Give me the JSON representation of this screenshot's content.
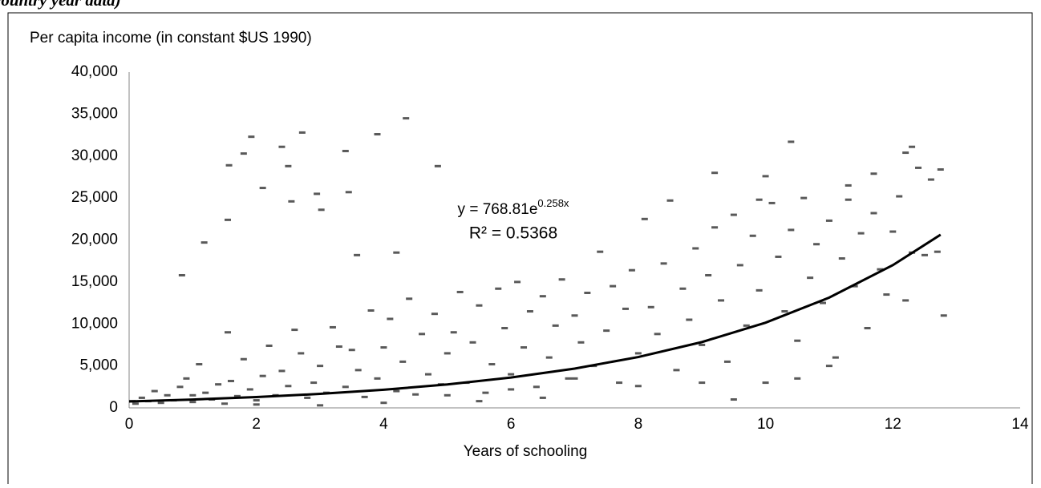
{
  "caption": "country year data)",
  "chart_data": {
    "type": "scatter",
    "ylabel": "Per capita income (in constant $US 1990)",
    "xlabel": "Years of schooling",
    "xlim": [
      0,
      14
    ],
    "xticks": [
      0,
      2,
      4,
      6,
      8,
      10,
      12,
      14
    ],
    "ylim": [
      0,
      40000
    ],
    "yticks": [
      0,
      {
        "value": 5000,
        "label": "5,000"
      },
      {
        "value": 10000,
        "label": "10,000"
      },
      {
        "value": 15000,
        "label": "15,000"
      },
      {
        "value": 20000,
        "label": "20,000"
      },
      {
        "value": 25000,
        "label": "25,000"
      },
      {
        "value": 30000,
        "label": "30,000"
      },
      {
        "value": 35000,
        "label": "35,000"
      },
      {
        "value": 40000,
        "label": "40,000"
      }
    ],
    "grid": false,
    "color": "#595959",
    "x": [
      0.83,
      1.18,
      1.55,
      1.57,
      1.8,
      1.92,
      2.1,
      2.4,
      2.5,
      2.55,
      2.72,
      2.95,
      3.02,
      3.4,
      3.45,
      3.58,
      3.9,
      4.2,
      4.35,
      4.85,
      1.55,
      9.2,
      10.4,
      12.2,
      12.3,
      12.75,
      12.8,
      10.0,
      9.9,
      11.3,
      11.7,
      12.4,
      0.1,
      0.2,
      0.3,
      0.4,
      0.5,
      0.6,
      0.7,
      0.8,
      0.9,
      1.0,
      1.1,
      1.2,
      1.3,
      1.4,
      1.5,
      1.6,
      1.7,
      1.8,
      1.9,
      2.0,
      2.1,
      2.2,
      2.3,
      2.4,
      2.5,
      2.6,
      2.7,
      2.8,
      2.9,
      3.0,
      3.1,
      3.2,
      3.3,
      3.4,
      3.5,
      3.6,
      3.7,
      3.8,
      3.9,
      4.0,
      4.1,
      4.2,
      4.3,
      4.4,
      4.5,
      4.6,
      4.7,
      4.8,
      4.9,
      5.0,
      5.1,
      5.2,
      5.3,
      5.4,
      5.5,
      5.6,
      5.7,
      5.8,
      5.9,
      6.0,
      6.1,
      6.2,
      6.3,
      6.4,
      6.5,
      6.6,
      6.7,
      6.8,
      6.9,
      7.0,
      7.1,
      7.2,
      7.3,
      7.4,
      7.5,
      7.6,
      7.7,
      7.8,
      7.9,
      8.0,
      8.1,
      8.2,
      8.3,
      8.4,
      8.5,
      8.6,
      8.7,
      8.8,
      8.9,
      9.0,
      9.1,
      9.2,
      9.3,
      9.4,
      9.5,
      9.6,
      9.7,
      9.8,
      9.9,
      10.0,
      10.1,
      10.2,
      10.3,
      10.4,
      10.5,
      10.6,
      10.7,
      10.8,
      10.9,
      11.0,
      11.1,
      11.2,
      11.3,
      11.4,
      11.5,
      11.6,
      11.7,
      11.8,
      11.9,
      12.0,
      12.1,
      12.2,
      12.3,
      12.5,
      12.6,
      12.7,
      5.0,
      6.0,
      7.0,
      8.0,
      9.0,
      9.5,
      10.5,
      11.0,
      2.0,
      3.0,
      4.0,
      5.5,
      6.5,
      1.0,
      0.05
    ],
    "values": [
      15800,
      19700,
      22400,
      28900,
      30300,
      32300,
      26200,
      31100,
      28800,
      24600,
      32800,
      25500,
      23600,
      30600,
      25700,
      18200,
      32600,
      18500,
      34500,
      28800,
      9000,
      28000,
      31700,
      30400,
      31100,
      28400,
      11000,
      27600,
      24800,
      26500,
      27900,
      28600,
      500,
      1200,
      800,
      2000,
      600,
      1500,
      900,
      2500,
      3500,
      700,
      5200,
      1800,
      1000,
      2800,
      500,
      3200,
      1400,
      5800,
      2200,
      900,
      3800,
      7400,
      1500,
      4400,
      2600,
      9300,
      6500,
      1200,
      3000,
      5000,
      1800,
      9600,
      7300,
      2500,
      6900,
      4500,
      1300,
      11600,
      3500,
      7200,
      10600,
      2000,
      5500,
      13000,
      1600,
      8800,
      4000,
      11200,
      2800,
      6500,
      9000,
      13800,
      3000,
      7800,
      12200,
      1800,
      5200,
      14200,
      9500,
      4000,
      15000,
      7200,
      11500,
      2500,
      13300,
      6000,
      9800,
      15300,
      3500,
      11000,
      7800,
      13700,
      5000,
      18600,
      9200,
      14500,
      3000,
      11800,
      16400,
      6500,
      22500,
      12000,
      8800,
      17200,
      24700,
      4500,
      14200,
      10500,
      19000,
      7500,
      15800,
      21500,
      12800,
      5500,
      23000,
      17000,
      9800,
      20500,
      14000,
      3000,
      24400,
      18000,
      11500,
      21200,
      8000,
      25000,
      15500,
      19500,
      12500,
      22300,
      6000,
      17800,
      24800,
      14500,
      20800,
      9500,
      23200,
      16500,
      13500,
      21000,
      25200,
      12800,
      18500,
      18200,
      27200,
      18600,
      1500,
      2200,
      3500,
      2600,
      3000,
      1000,
      3500,
      5000,
      400,
      300,
      600,
      800,
      1200,
      1500,
      800
    ],
    "trendline": {
      "color": "#000000",
      "equation": "y = 768.81e",
      "exponent": "0.258x",
      "r2": "R² = 0.5368",
      "x": [
        0,
        1,
        2,
        3,
        4,
        5,
        6,
        7,
        8,
        9,
        10,
        11,
        12,
        12.75
      ],
      "values": [
        769,
        995,
        1288,
        1667,
        2158,
        2793,
        3615,
        4680,
        6058,
        7841,
        10149,
        13137,
        17006,
        20630
      ]
    }
  }
}
